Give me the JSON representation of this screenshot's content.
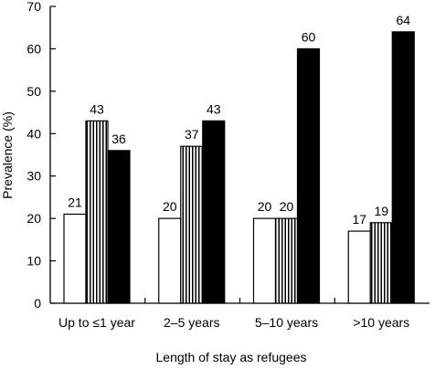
{
  "chart_data": {
    "type": "bar",
    "title": "",
    "xlabel": "Length of stay as refugees",
    "ylabel": "Prevalence (%)",
    "ylim": [
      0,
      70
    ],
    "yticks": [
      "0",
      "10",
      "20",
      "30",
      "40",
      "50",
      "60",
      "70"
    ],
    "grid": false,
    "legend": "none",
    "categories": [
      "Up to ≤1 year",
      "2–5 years",
      "5–10 years",
      ">10 years"
    ],
    "series": [
      {
        "fill": "white",
        "values": [
          21,
          20,
          20,
          17
        ],
        "labels": [
          "21",
          "20",
          "20",
          "17"
        ]
      },
      {
        "fill": "vertical-stripes",
        "values": [
          43,
          37,
          20,
          19
        ],
        "labels": [
          "43",
          "37",
          "20",
          "19"
        ]
      },
      {
        "fill": "black",
        "values": [
          36,
          43,
          60,
          64
        ],
        "labels": [
          "36",
          "43",
          "60",
          "64"
        ]
      }
    ],
    "colors": {
      "ink": "#000000",
      "background": "#ffffff"
    }
  }
}
